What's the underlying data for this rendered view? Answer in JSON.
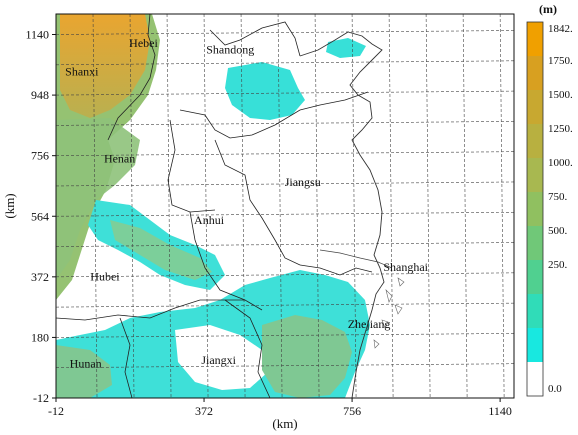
{
  "map": {
    "x_axis": {
      "label": "(km)",
      "ticks": [
        -12,
        372,
        756,
        1140
      ],
      "range": [
        -12,
        1176
      ]
    },
    "y_axis": {
      "label": "(km)",
      "ticks": [
        -12,
        180,
        372,
        564,
        756,
        948,
        1140
      ],
      "range": [
        -12,
        1205
      ]
    },
    "places": [
      {
        "name": "Shanxi",
        "x": 55,
        "y": 1010
      },
      {
        "name": "Hebei",
        "x": 215,
        "y": 1100
      },
      {
        "name": "Shandong",
        "x": 440,
        "y": 1080
      },
      {
        "name": "Henan",
        "x": 153,
        "y": 735
      },
      {
        "name": "Jiangsu",
        "x": 628,
        "y": 660
      },
      {
        "name": "Anhui",
        "x": 385,
        "y": 540
      },
      {
        "name": "Hubei",
        "x": 115,
        "y": 360
      },
      {
        "name": "Shanghai",
        "x": 895,
        "y": 390
      },
      {
        "name": "Zhejiang",
        "x": 800,
        "y": 210
      },
      {
        "name": "Hunan",
        "x": 65,
        "y": 85
      },
      {
        "name": "Jiangxi",
        "x": 410,
        "y": 95
      }
    ]
  },
  "colorbar": {
    "unit": "(m)",
    "labels": [
      "1842.",
      "1750.",
      "1500.",
      "1250.",
      "1000.",
      "750.",
      "500.",
      "250.",
      "0.0"
    ],
    "colors": [
      "#f0a000",
      "#d8a020",
      "#c8a830",
      "#b8b040",
      "#a8b850",
      "#90c060",
      "#70c878",
      "#50d090",
      "#30dcb8",
      "#18e8e0",
      "#ffffff"
    ]
  }
}
